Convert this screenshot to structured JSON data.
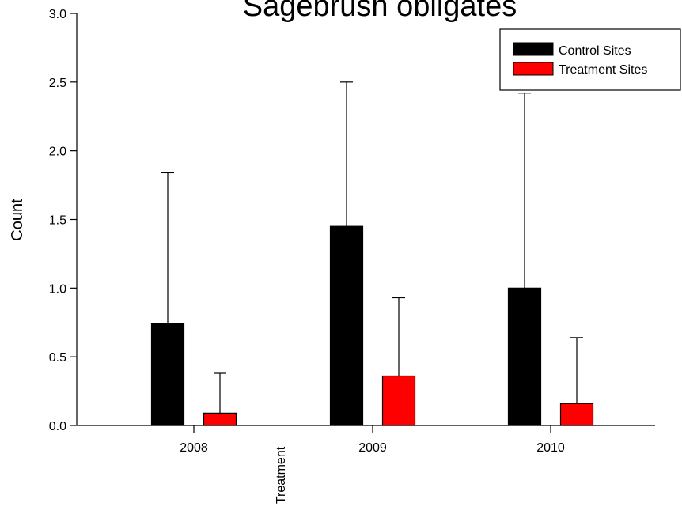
{
  "chart_data": {
    "type": "bar",
    "title": "Sagebrush obligates",
    "ylabel": "Count",
    "xlabel": "",
    "ylim": [
      0,
      3.0
    ],
    "yticks": [
      "0.0",
      "0.5",
      "1.0",
      "1.5",
      "2.0",
      "2.5",
      "3.0"
    ],
    "categories": [
      "2008",
      "2009",
      "2010"
    ],
    "annotation": "Treatment",
    "legend_position": "top-right",
    "series": [
      {
        "name": "Control Sites",
        "color": "#000000",
        "values": [
          0.74,
          1.45,
          1.0
        ],
        "error_upper": [
          1.84,
          2.5,
          2.42
        ]
      },
      {
        "name": "Treatment Sites",
        "color": "#ff0000",
        "values": [
          0.09,
          0.36,
          0.16
        ],
        "error_upper": [
          0.38,
          0.93,
          0.64
        ]
      }
    ]
  }
}
